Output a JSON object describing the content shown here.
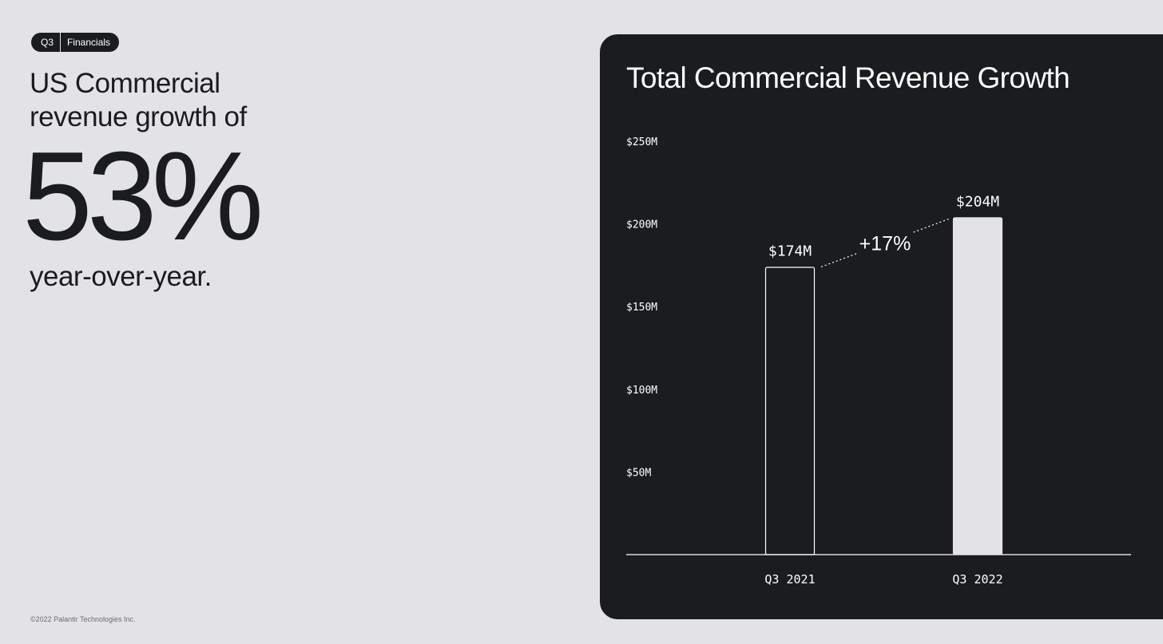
{
  "badge": {
    "quarter": "Q3",
    "section": "Financials"
  },
  "headline": "US Commercial revenue growth of",
  "big_number": "53%",
  "subline": "year-over-year.",
  "copyright": "©2022 Palantir Technologies Inc.",
  "colors": {
    "background": "#e3e3e5",
    "panel": "#1b1c1f",
    "text_dark": "#1b1c1f",
    "text_light": "#ffffff",
    "bar_fill_2022": "#e3e3e5"
  },
  "chart_data": {
    "type": "bar",
    "title": "Total Commercial Revenue Growth",
    "xlabel": "",
    "ylabel": "",
    "categories": [
      "Q3 2021",
      "Q3 2022"
    ],
    "values": [
      174,
      204
    ],
    "value_labels": [
      "$174M",
      "$204M"
    ],
    "bar_styles": [
      "outline",
      "filled"
    ],
    "y_ticks": [
      {
        "value": 50,
        "label": "$50M"
      },
      {
        "value": 100,
        "label": "$100M"
      },
      {
        "value": 150,
        "label": "$150M"
      },
      {
        "value": 200,
        "label": "$200M"
      },
      {
        "value": 250,
        "label": "$250M"
      }
    ],
    "ylim": [
      0,
      250
    ],
    "grid": false,
    "annotation": "+17%"
  }
}
